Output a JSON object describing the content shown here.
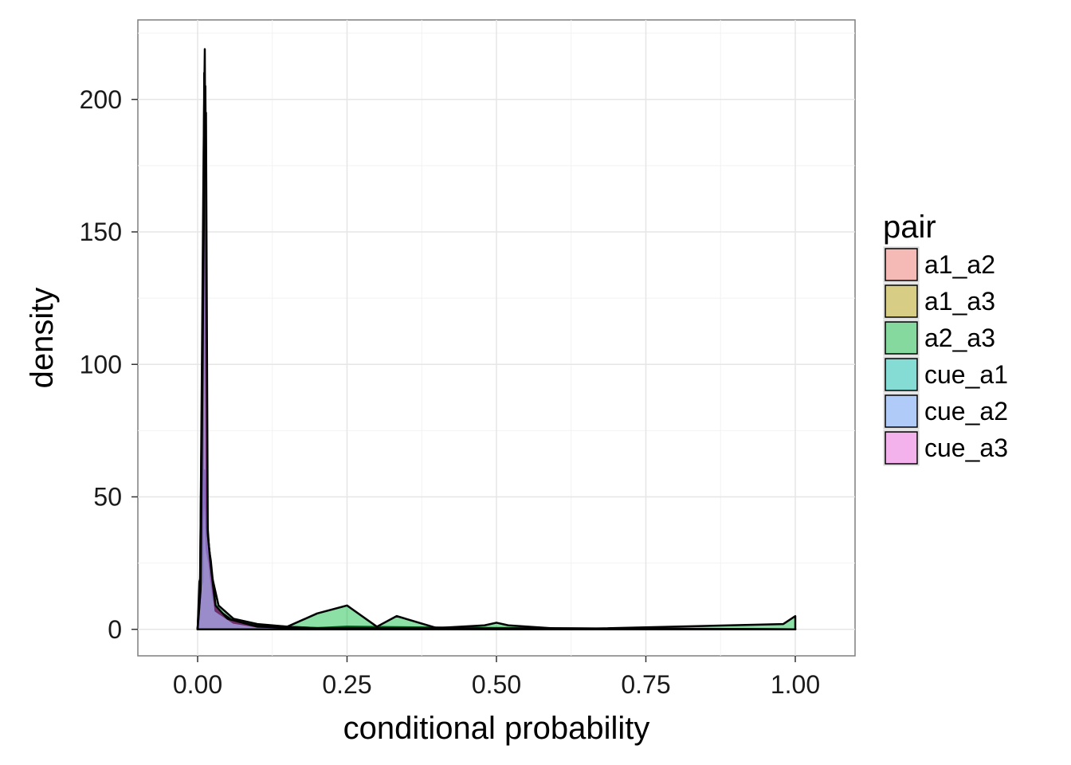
{
  "chart_data": {
    "type": "area",
    "title": "",
    "xlabel": "conditional probability",
    "ylabel": "density",
    "xlim": [
      -0.1,
      1.1
    ],
    "ylim": [
      -10,
      230
    ],
    "x_ticks": [
      0,
      0.25,
      0.5,
      0.75,
      1
    ],
    "x_tick_labels": [
      "0.00",
      "0.25",
      "0.50",
      "0.75",
      "1.00"
    ],
    "y_ticks": [
      0,
      50,
      100,
      150,
      200
    ],
    "y_tick_labels": [
      "0",
      "50",
      "100",
      "150",
      "200"
    ],
    "grid": true,
    "legend": {
      "title": "pair",
      "position": "right"
    },
    "series": [
      {
        "name": "a1_a2",
        "color": "#F8766D",
        "points": [
          [
            0,
            0
          ],
          [
            0.003,
            18
          ],
          [
            0.008,
            22
          ],
          [
            0.011,
            200
          ],
          [
            0.013,
            205
          ],
          [
            0.016,
            40
          ],
          [
            0.02,
            24
          ],
          [
            0.025,
            12
          ],
          [
            0.035,
            6
          ],
          [
            0.06,
            3
          ],
          [
            0.1,
            1.5
          ],
          [
            0.2,
            0.5
          ],
          [
            0.25,
            1
          ],
          [
            0.5,
            0.5
          ],
          [
            1,
            0
          ]
        ]
      },
      {
        "name": "a1_a3",
        "color": "#B79F00",
        "points": [
          [
            0,
            0
          ],
          [
            0.003,
            14
          ],
          [
            0.008,
            18
          ],
          [
            0.011,
            210
          ],
          [
            0.013,
            200
          ],
          [
            0.016,
            35
          ],
          [
            0.022,
            26
          ],
          [
            0.03,
            8
          ],
          [
            0.06,
            3
          ],
          [
            0.1,
            1.5
          ],
          [
            0.2,
            0.5
          ],
          [
            0.5,
            0.5
          ],
          [
            1,
            0
          ]
        ]
      },
      {
        "name": "a2_a3",
        "color": "#00BA38",
        "points": [
          [
            0,
            0
          ],
          [
            0.005,
            15
          ],
          [
            0.011,
            60
          ],
          [
            0.015,
            30
          ],
          [
            0.022,
            22
          ],
          [
            0.035,
            9
          ],
          [
            0.06,
            4
          ],
          [
            0.1,
            2
          ],
          [
            0.15,
            1
          ],
          [
            0.2,
            6
          ],
          [
            0.25,
            9
          ],
          [
            0.3,
            1
          ],
          [
            0.333,
            5
          ],
          [
            0.4,
            0.5
          ],
          [
            0.48,
            1.5
          ],
          [
            0.5,
            2.5
          ],
          [
            0.52,
            1.5
          ],
          [
            0.6,
            0.3
          ],
          [
            0.667,
            0.3
          ],
          [
            0.98,
            2
          ],
          [
            1,
            5
          ]
        ]
      },
      {
        "name": "cue_a1",
        "color": "#00C0AF",
        "points": [
          [
            0,
            0
          ],
          [
            0.004,
            12
          ],
          [
            0.01,
            180
          ],
          [
            0.012,
            219
          ],
          [
            0.015,
            45
          ],
          [
            0.022,
            20
          ],
          [
            0.03,
            8
          ],
          [
            0.06,
            3
          ],
          [
            0.1,
            1.2
          ],
          [
            0.2,
            0.4
          ],
          [
            0.5,
            0.3
          ],
          [
            1,
            0
          ]
        ]
      },
      {
        "name": "cue_a2",
        "color": "#619CFF",
        "points": [
          [
            0,
            0
          ],
          [
            0.004,
            16
          ],
          [
            0.01,
            150
          ],
          [
            0.013,
            190
          ],
          [
            0.016,
            38
          ],
          [
            0.023,
            22
          ],
          [
            0.03,
            7
          ],
          [
            0.06,
            2.5
          ],
          [
            0.1,
            1
          ],
          [
            0.2,
            0.4
          ],
          [
            1,
            0
          ]
        ]
      },
      {
        "name": "cue_a3",
        "color": "#F564E3",
        "points": [
          [
            0,
            0
          ],
          [
            0.005,
            15
          ],
          [
            0.011,
            170
          ],
          [
            0.014,
            195
          ],
          [
            0.017,
            36
          ],
          [
            0.022,
            24
          ],
          [
            0.03,
            9
          ],
          [
            0.05,
            4
          ],
          [
            0.1,
            1
          ],
          [
            0.2,
            0.3
          ],
          [
            1,
            0
          ]
        ]
      }
    ]
  }
}
